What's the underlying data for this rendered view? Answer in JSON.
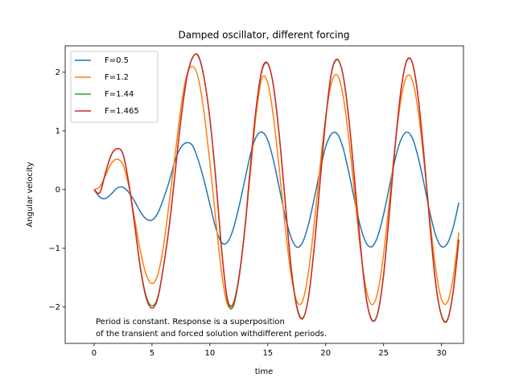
{
  "chart_data": {
    "type": "line",
    "title": "Damped oscillator, different forcing",
    "x_label": "time",
    "y_label": "Angular velocity",
    "annotation": [
      "Period is constant. Response is a superposition",
      "of the transient and forced solution withdifferent periods."
    ],
    "legend": "upper left",
    "xlim": [
      -2.5,
      31.9
    ],
    "ylim": [
      -2.62,
      2.45
    ],
    "xticks": [
      0,
      5,
      10,
      15,
      20,
      25,
      30
    ],
    "yticks": [
      {
        "value": -2,
        "label": "−2"
      },
      {
        "value": -1,
        "label": "−1"
      },
      0,
      1,
      2
    ],
    "x": [
      0,
      0.5,
      1,
      1.5,
      2,
      2.5,
      3,
      3.5,
      4,
      4.5,
      5,
      5.5,
      6,
      6.5,
      7,
      7.5,
      8,
      8.5,
      9,
      9.5,
      10,
      10.5,
      11,
      11.5,
      12,
      12.5,
      13,
      13.5,
      14,
      14.5,
      15,
      15.5,
      16,
      16.5,
      17,
      17.5,
      18,
      18.5,
      19,
      19.5,
      20,
      20.5,
      21,
      21.5,
      22,
      22.5,
      23,
      23.5,
      24,
      24.5,
      25,
      25.5,
      26,
      26.5,
      27,
      27.5,
      28,
      28.5,
      29,
      29.5,
      30,
      30.5,
      31,
      31.5
    ],
    "series": [
      {
        "name": "F=0.5",
        "color": "#1f77b4",
        "values": [
          0,
          -0.13,
          -0.15,
          -0.07,
          0.03,
          0.04,
          -0.05,
          -0.2,
          -0.38,
          -0.5,
          -0.52,
          -0.4,
          -0.15,
          0.15,
          0.5,
          0.72,
          0.8,
          0.75,
          0.5,
          0.15,
          -0.25,
          -0.65,
          -0.9,
          -0.9,
          -0.68,
          -0.3,
          0.15,
          0.6,
          0.9,
          0.98,
          0.84,
          0.49,
          0.02,
          -0.45,
          -0.81,
          -0.98,
          -0.9,
          -0.6,
          -0.16,
          0.32,
          0.73,
          0.95,
          0.95,
          0.71,
          0.29,
          -0.19,
          -0.63,
          -0.91,
          -0.97,
          -0.79,
          -0.42,
          0.05,
          0.52,
          0.85,
          0.98,
          0.87,
          0.54,
          0.09,
          -0.39,
          -0.78,
          -0.97,
          -0.92,
          -0.65,
          -0.22
        ]
      },
      {
        "name": "F=1.2",
        "color": "#ff7f0e",
        "values": [
          0,
          0.05,
          0.25,
          0.45,
          0.52,
          0.42,
          0.05,
          -0.5,
          -1.05,
          -1.45,
          -1.6,
          -1.45,
          -0.95,
          -0.2,
          0.6,
          1.4,
          1.95,
          2.1,
          1.9,
          1.3,
          0.45,
          -0.5,
          -1.4,
          -1.95,
          -1.95,
          -1.5,
          -0.7,
          0.3,
          1.3,
          1.9,
          1.81,
          1.22,
          0.33,
          -0.63,
          -1.44,
          -1.9,
          -1.9,
          -1.42,
          -0.6,
          0.37,
          1.24,
          1.82,
          1.95,
          1.6,
          0.86,
          -0.09,
          -1.02,
          -1.7,
          -1.96,
          -1.74,
          -1.1,
          -0.19,
          0.77,
          1.54,
          1.93,
          1.85,
          1.32,
          0.46,
          -0.51,
          -1.35,
          -1.87,
          -1.92,
          -1.51,
          -0.73
        ]
      },
      {
        "name": "F=1.44",
        "color": "#2ca02c",
        "values": [
          0,
          -0.05,
          0.3,
          0.6,
          0.7,
          0.6,
          0.1,
          -0.6,
          -1.33,
          -1.82,
          -1.98,
          -1.83,
          -1.3,
          -0.6,
          0.3,
          1.2,
          1.9,
          2.25,
          2.27,
          1.9,
          1.2,
          0.2,
          -1.0,
          -1.88,
          -2.0,
          -1.52,
          -0.7,
          0.4,
          1.4,
          2.03,
          2.14,
          1.75,
          0.9,
          -0.2,
          -1.3,
          -1.98,
          -2.19,
          -1.85,
          -1.0,
          0.1,
          1.2,
          1.99,
          2.21,
          1.95,
          1.2,
          0.15,
          -0.95,
          -1.84,
          -2.22,
          -2.1,
          -1.45,
          -0.4,
          0.75,
          1.69,
          2.19,
          2.15,
          1.55,
          0.55,
          -0.6,
          -1.6,
          -2.14,
          -2.22,
          -1.75,
          -0.85
        ]
      },
      {
        "name": "F=1.465",
        "color": "#d62728",
        "values": [
          0,
          -0.05,
          0.3,
          0.6,
          0.7,
          0.6,
          0.1,
          -0.6,
          -1.35,
          -1.85,
          -2.02,
          -1.85,
          -1.3,
          -0.6,
          0.3,
          1.2,
          1.9,
          2.25,
          2.28,
          1.9,
          1.2,
          0.2,
          -1.0,
          -1.85,
          -1.95,
          -1.5,
          -0.7,
          0.4,
          1.4,
          2.05,
          2.15,
          1.75,
          0.9,
          -0.2,
          -1.3,
          -2.0,
          -2.2,
          -1.85,
          -1.0,
          0.1,
          1.2,
          2.0,
          2.22,
          1.95,
          1.2,
          0.15,
          -0.95,
          -1.85,
          -2.23,
          -2.1,
          -1.45,
          -0.4,
          0.75,
          1.7,
          2.2,
          2.15,
          1.55,
          0.55,
          -0.6,
          -1.6,
          -2.15,
          -2.23,
          -1.75,
          -0.85
        ]
      }
    ]
  }
}
